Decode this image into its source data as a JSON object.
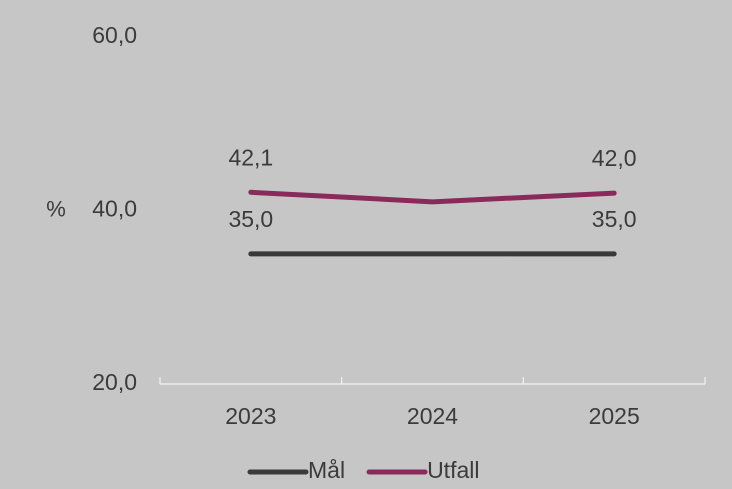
{
  "chart_data": {
    "type": "line",
    "title": "",
    "xlabel": "",
    "ylabel": "%",
    "categories": [
      "2023",
      "2024",
      "2025"
    ],
    "ylim": [
      20,
      60
    ],
    "yticks": [
      "60,0",
      "40,0",
      "20,0"
    ],
    "ytick_values": [
      60,
      40,
      20
    ],
    "grid": false,
    "legend_position": "bottom",
    "series": [
      {
        "name": "Mål",
        "color": "#3a3a3a",
        "values": [
          35.0,
          35.0,
          35.0
        ],
        "data_labels": [
          "35,0",
          "",
          "35,0"
        ]
      },
      {
        "name": "Utfall",
        "color": "#8a2a5a",
        "values": [
          42.1,
          41.0,
          42.0
        ],
        "data_labels": [
          "42,1",
          "",
          "42,0"
        ]
      }
    ]
  }
}
